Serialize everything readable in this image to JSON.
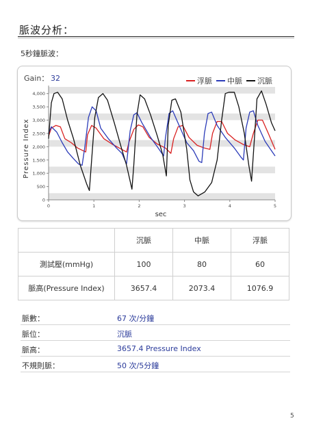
{
  "page_title": "脈波分析：",
  "section_title": "5秒鐘脈波：",
  "gain": {
    "label": "Gain：",
    "value": "32"
  },
  "chart_data": {
    "type": "line",
    "xlabel": "sec",
    "ylabel": "Pressure Index",
    "xlim": [
      0,
      5
    ],
    "ylim": [
      0,
      4250
    ],
    "x_ticks": [
      "0",
      "1",
      "2",
      "3",
      "4",
      "5"
    ],
    "y_ticks": [
      "0",
      "500",
      "1,000",
      "1,500",
      "2,000",
      "2,500",
      "3,000",
      "3,500",
      "4,000"
    ],
    "grid_bands": true,
    "legend_position": "top-right",
    "series": [
      {
        "name": "浮脈",
        "color": "#d92020",
        "points": [
          [
            0.0,
            2400
          ],
          [
            0.06,
            2700
          ],
          [
            0.16,
            2800
          ],
          [
            0.26,
            2750
          ],
          [
            0.36,
            2300
          ],
          [
            0.5,
            2150
          ],
          [
            0.64,
            1950
          ],
          [
            0.82,
            1800
          ],
          [
            0.86,
            2450
          ],
          [
            0.95,
            2800
          ],
          [
            1.05,
            2700
          ],
          [
            1.22,
            2300
          ],
          [
            1.4,
            2100
          ],
          [
            1.56,
            1950
          ],
          [
            1.72,
            1800
          ],
          [
            1.78,
            2200
          ],
          [
            1.88,
            2650
          ],
          [
            1.98,
            2820
          ],
          [
            2.08,
            2750
          ],
          [
            2.22,
            2350
          ],
          [
            2.4,
            2100
          ],
          [
            2.58,
            1950
          ],
          [
            2.7,
            1750
          ],
          [
            2.76,
            2300
          ],
          [
            2.86,
            2750
          ],
          [
            2.96,
            2800
          ],
          [
            3.1,
            2350
          ],
          [
            3.28,
            2050
          ],
          [
            3.44,
            1950
          ],
          [
            3.56,
            1900
          ],
          [
            3.62,
            2500
          ],
          [
            3.72,
            2950
          ],
          [
            3.82,
            2950
          ],
          [
            3.95,
            2500
          ],
          [
            4.12,
            2250
          ],
          [
            4.3,
            2080
          ],
          [
            4.44,
            2000
          ],
          [
            4.52,
            2500
          ],
          [
            4.62,
            3000
          ],
          [
            4.72,
            3000
          ],
          [
            4.85,
            2500
          ],
          [
            5.0,
            1900
          ]
        ]
      },
      {
        "name": "中脈",
        "color": "#2a3ab8",
        "points": [
          [
            0.0,
            2500
          ],
          [
            0.06,
            2750
          ],
          [
            0.18,
            2550
          ],
          [
            0.3,
            2150
          ],
          [
            0.42,
            1800
          ],
          [
            0.55,
            1550
          ],
          [
            0.66,
            1350
          ],
          [
            0.74,
            1300
          ],
          [
            0.8,
            2000
          ],
          [
            0.88,
            3100
          ],
          [
            0.96,
            3500
          ],
          [
            1.05,
            3350
          ],
          [
            1.15,
            2700
          ],
          [
            1.32,
            2300
          ],
          [
            1.5,
            1950
          ],
          [
            1.62,
            1750
          ],
          [
            1.72,
            1350
          ],
          [
            1.8,
            2600
          ],
          [
            1.88,
            3200
          ],
          [
            1.95,
            3280
          ],
          [
            2.06,
            2900
          ],
          [
            2.25,
            2350
          ],
          [
            2.42,
            1950
          ],
          [
            2.54,
            1650
          ],
          [
            2.58,
            2350
          ],
          [
            2.66,
            3250
          ],
          [
            2.74,
            3350
          ],
          [
            2.88,
            2800
          ],
          [
            3.05,
            2150
          ],
          [
            3.2,
            1850
          ],
          [
            3.32,
            1450
          ],
          [
            3.38,
            1400
          ],
          [
            3.44,
            2500
          ],
          [
            3.52,
            3250
          ],
          [
            3.6,
            3300
          ],
          [
            3.72,
            2800
          ],
          [
            3.9,
            2350
          ],
          [
            4.1,
            1950
          ],
          [
            4.25,
            1600
          ],
          [
            4.3,
            1500
          ],
          [
            4.36,
            2700
          ],
          [
            4.44,
            3300
          ],
          [
            4.52,
            3350
          ],
          [
            4.62,
            2800
          ],
          [
            4.78,
            2200
          ],
          [
            4.92,
            1850
          ],
          [
            5.0,
            1650
          ]
        ]
      },
      {
        "name": "沉脈",
        "color": "#111111",
        "points": [
          [
            0.0,
            2300
          ],
          [
            0.06,
            3650
          ],
          [
            0.12,
            4000
          ],
          [
            0.2,
            4050
          ],
          [
            0.3,
            3800
          ],
          [
            0.42,
            3000
          ],
          [
            0.55,
            2300
          ],
          [
            0.7,
            1300
          ],
          [
            0.84,
            600
          ],
          [
            0.9,
            350
          ],
          [
            0.95,
            1500
          ],
          [
            1.02,
            3100
          ],
          [
            1.1,
            3850
          ],
          [
            1.2,
            4000
          ],
          [
            1.3,
            3750
          ],
          [
            1.45,
            2900
          ],
          [
            1.6,
            2000
          ],
          [
            1.72,
            1300
          ],
          [
            1.8,
            700
          ],
          [
            1.84,
            400
          ],
          [
            1.88,
            1300
          ],
          [
            1.95,
            3200
          ],
          [
            2.02,
            3950
          ],
          [
            2.12,
            3800
          ],
          [
            2.25,
            3200
          ],
          [
            2.4,
            2400
          ],
          [
            2.52,
            1700
          ],
          [
            2.58,
            1100
          ],
          [
            2.6,
            900
          ],
          [
            2.64,
            2800
          ],
          [
            2.72,
            3750
          ],
          [
            2.8,
            3800
          ],
          [
            2.92,
            3300
          ],
          [
            3.05,
            1900
          ],
          [
            3.12,
            750
          ],
          [
            3.2,
            300
          ],
          [
            3.3,
            150
          ],
          [
            3.45,
            300
          ],
          [
            3.6,
            650
          ],
          [
            3.72,
            1500
          ],
          [
            3.82,
            3000
          ],
          [
            3.9,
            4000
          ],
          [
            3.98,
            4050
          ],
          [
            4.1,
            4050
          ],
          [
            4.2,
            3500
          ],
          [
            4.32,
            2500
          ],
          [
            4.42,
            1300
          ],
          [
            4.48,
            700
          ],
          [
            4.54,
            2200
          ],
          [
            4.6,
            3800
          ],
          [
            4.7,
            4100
          ],
          [
            4.8,
            3600
          ],
          [
            4.92,
            2900
          ],
          [
            5.0,
            2600
          ]
        ]
      }
    ]
  },
  "table": {
    "headers": [
      "",
      "沉脈",
      "中脈",
      "浮脈"
    ],
    "rows": [
      {
        "label": "測試壓(mmHg)",
        "cells": [
          "100",
          "80",
          "60"
        ]
      },
      {
        "label": "脈高(Pressure Index)",
        "cells": [
          "3657.4",
          "2073.4",
          "1076.9"
        ]
      }
    ]
  },
  "info": [
    {
      "label": "脈數：",
      "value": "67 次/分鐘"
    },
    {
      "label": "脈位：",
      "value": "沉脈"
    },
    {
      "label": "脈高：",
      "value": "3657.4 Pressure Index"
    },
    {
      "label": "不規則脈：",
      "value": "50 次/5分鐘"
    }
  ],
  "page_number": "5"
}
